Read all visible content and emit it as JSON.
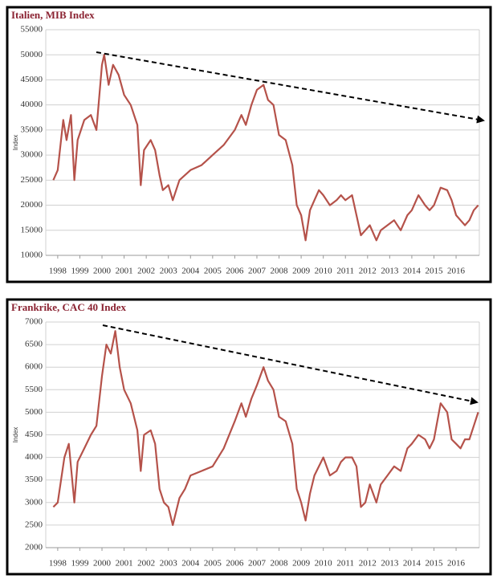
{
  "chart_data": [
    {
      "type": "line",
      "title": "Italien, MIB Index",
      "y_label": "Index",
      "x": [
        1997.8,
        1998.0,
        1998.25,
        1998.4,
        1998.6,
        1998.75,
        1998.9,
        1999.2,
        1999.5,
        1999.75,
        2000.0,
        2000.1,
        2000.3,
        2000.5,
        2000.75,
        2001.0,
        2001.3,
        2001.6,
        2001.75,
        2001.9,
        2002.2,
        2002.4,
        2002.6,
        2002.75,
        2003.0,
        2003.2,
        2003.5,
        2003.75,
        2004.0,
        2004.5,
        2005.0,
        2005.5,
        2006.0,
        2006.3,
        2006.5,
        2006.75,
        2007.0,
        2007.3,
        2007.5,
        2007.75,
        2008.0,
        2008.3,
        2008.6,
        2008.8,
        2009.0,
        2009.2,
        2009.4,
        2009.6,
        2009.8,
        2010.0,
        2010.3,
        2010.6,
        2010.8,
        2011.0,
        2011.3,
        2011.5,
        2011.7,
        2011.9,
        2012.1,
        2012.4,
        2012.6,
        2012.9,
        2013.2,
        2013.5,
        2013.8,
        2014.0,
        2014.3,
        2014.6,
        2014.8,
        2015.0,
        2015.3,
        2015.6,
        2015.8,
        2016.0,
        2016.2,
        2016.4,
        2016.6,
        2016.8,
        2017.0
      ],
      "values": [
        25000,
        27000,
        37000,
        33000,
        38000,
        25000,
        33000,
        37000,
        38000,
        35000,
        48000,
        50000,
        44000,
        48000,
        46000,
        42000,
        40000,
        36000,
        24000,
        31000,
        33000,
        31000,
        26000,
        23000,
        24000,
        21000,
        25000,
        26000,
        27000,
        28000,
        30000,
        32000,
        35000,
        38000,
        36000,
        40000,
        43000,
        44000,
        41000,
        40000,
        34000,
        33000,
        28000,
        20000,
        18000,
        13000,
        19000,
        21000,
        23000,
        22000,
        20000,
        21000,
        22000,
        21000,
        22000,
        18000,
        14000,
        15000,
        16000,
        13000,
        15000,
        16000,
        17000,
        15000,
        18000,
        19000,
        22000,
        20000,
        19000,
        20000,
        23500,
        23000,
        21000,
        18000,
        17000,
        16000,
        17000,
        19000,
        20000
      ],
      "color": "#b5524a",
      "xlim": [
        1997.46,
        2017.05
      ],
      "xticks": [
        1998,
        1999,
        2000,
        2001,
        2002,
        2003,
        2004,
        2005,
        2006,
        2007,
        2008,
        2009,
        2010,
        2011,
        2012,
        2013,
        2014,
        2015,
        2016
      ],
      "ylim": [
        10000,
        55000
      ],
      "yticks": [
        10000,
        15000,
        20000,
        25000,
        30000,
        35000,
        40000,
        45000,
        50000,
        55000
      ],
      "grid": true
    },
    {
      "type": "line",
      "title": "Frankrike, CAC 40 Index",
      "y_label": "Index",
      "x": [
        1997.8,
        1998.0,
        1998.3,
        1998.5,
        1998.75,
        1998.9,
        1999.2,
        1999.5,
        1999.75,
        2000.0,
        2000.2,
        2000.4,
        2000.6,
        2000.8,
        2001.0,
        2001.3,
        2001.6,
        2001.75,
        2001.9,
        2002.2,
        2002.4,
        2002.6,
        2002.8,
        2003.0,
        2003.2,
        2003.5,
        2003.75,
        2004.0,
        2004.5,
        2005.0,
        2005.5,
        2006.0,
        2006.3,
        2006.5,
        2006.75,
        2007.0,
        2007.3,
        2007.5,
        2007.75,
        2008.0,
        2008.3,
        2008.6,
        2008.8,
        2009.0,
        2009.2,
        2009.4,
        2009.6,
        2009.8,
        2010.0,
        2010.3,
        2010.6,
        2010.8,
        2011.0,
        2011.3,
        2011.5,
        2011.7,
        2011.9,
        2012.1,
        2012.4,
        2012.6,
        2012.9,
        2013.2,
        2013.5,
        2013.8,
        2014.0,
        2014.3,
        2014.6,
        2014.8,
        2015.0,
        2015.3,
        2015.6,
        2015.8,
        2016.0,
        2016.2,
        2016.4,
        2016.6,
        2016.8,
        2017.0
      ],
      "values": [
        2900,
        3000,
        4000,
        4300,
        3000,
        3900,
        4200,
        4500,
        4700,
        5800,
        6500,
        6300,
        6800,
        6000,
        5500,
        5200,
        4600,
        3700,
        4500,
        4600,
        4300,
        3300,
        3000,
        2900,
        2500,
        3100,
        3300,
        3600,
        3700,
        3800,
        4200,
        4800,
        5200,
        4900,
        5300,
        5600,
        6000,
        5700,
        5500,
        4900,
        4800,
        4300,
        3300,
        3000,
        2600,
        3200,
        3600,
        3800,
        4000,
        3600,
        3700,
        3900,
        4000,
        4000,
        3800,
        2900,
        3000,
        3400,
        3000,
        3400,
        3600,
        3800,
        3700,
        4200,
        4300,
        4500,
        4400,
        4200,
        4400,
        5200,
        5000,
        4400,
        4300,
        4200,
        4400,
        4400,
        4700,
        5000
      ],
      "color": "#b5524a",
      "xlim": [
        1997.46,
        2017.05
      ],
      "xticks": [
        1998,
        1999,
        2000,
        2001,
        2002,
        2003,
        2004,
        2005,
        2006,
        2007,
        2008,
        2009,
        2010,
        2011,
        2012,
        2013,
        2014,
        2015,
        2016
      ],
      "ylim": [
        2000,
        7000
      ],
      "yticks": [
        2000,
        2500,
        3000,
        3500,
        4000,
        4500,
        5000,
        5500,
        6000,
        6500,
        7000
      ],
      "grid": true
    }
  ]
}
